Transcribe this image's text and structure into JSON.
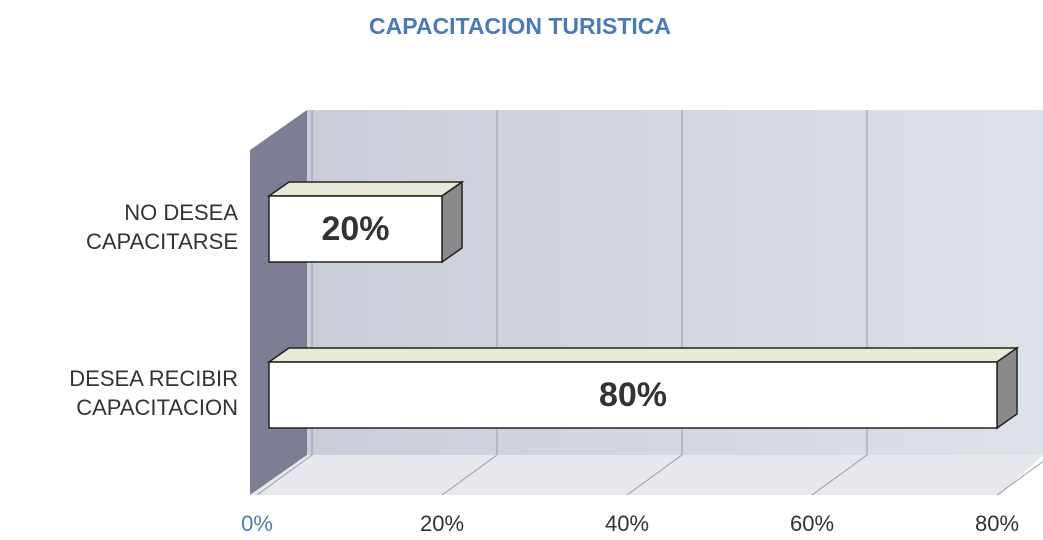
{
  "chart_data": {
    "type": "bar3d_horizontal",
    "title": "CAPACITACION TURISTICA",
    "categories": [
      "NO DESEA CAPACITARSE",
      "DESEA RECIBIR CAPACITACION"
    ],
    "values": [
      20,
      80
    ],
    "value_labels": [
      "20%",
      "80%"
    ],
    "color": "#ffffff",
    "xlim": [
      0,
      80
    ],
    "xticks": [
      {
        "value": 0,
        "label": "0%"
      },
      {
        "value": 20,
        "label": "20%"
      },
      {
        "value": 40,
        "label": "40%"
      },
      {
        "value": 60,
        "label": "60%"
      },
      {
        "value": 80,
        "label": "80%"
      }
    ],
    "grid": true
  }
}
